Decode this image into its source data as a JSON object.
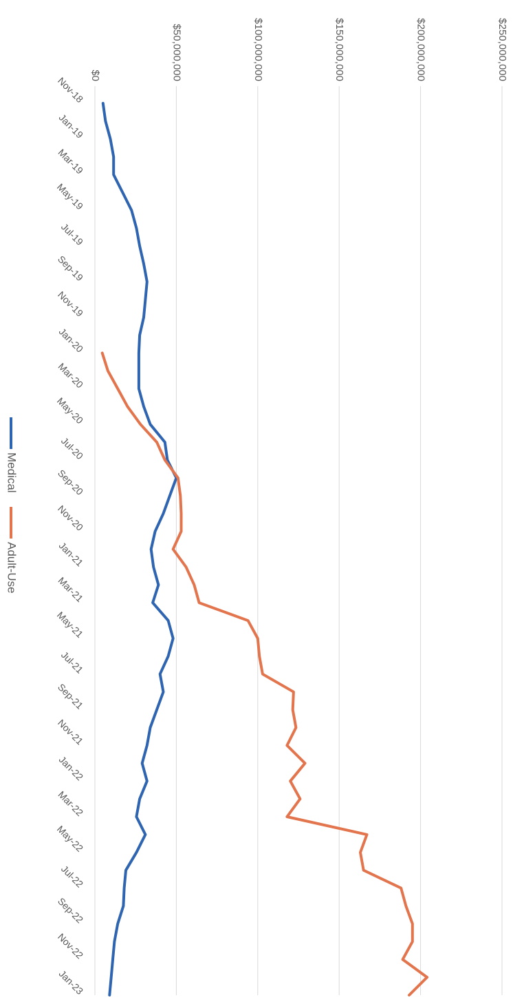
{
  "chart_data": {
    "type": "line",
    "orientation": "rotated-90-clockwise",
    "y_ticks": [
      "$0",
      "$50,000,000",
      "$100,000,000",
      "$150,000,000",
      "$200,000,000",
      "$250,000,000"
    ],
    "ylim": [
      0,
      250000000
    ],
    "grid": true,
    "legend_position": "bottom",
    "x_tick_labels": [
      "Nov-18",
      "Jan-19",
      "Mar-19",
      "May-19",
      "Jul-19",
      "Sep-19",
      "Nov-19",
      "Jan-20",
      "Mar-20",
      "May-20",
      "Jul-20",
      "Sep-20",
      "Nov-20",
      "Jan-21",
      "Mar-21",
      "May-21",
      "Jul-21",
      "Sep-21",
      "Nov-21",
      "Jan-22",
      "Mar-22",
      "May-22",
      "Jul-22",
      "Sep-22",
      "Nov-22",
      "Jan-23"
    ],
    "x": [
      "Nov-18",
      "Dec-18",
      "Jan-19",
      "Feb-19",
      "Mar-19",
      "Apr-19",
      "May-19",
      "Jun-19",
      "Jul-19",
      "Aug-19",
      "Sep-19",
      "Oct-19",
      "Nov-19",
      "Dec-19",
      "Jan-20",
      "Feb-20",
      "Mar-20",
      "Apr-20",
      "May-20",
      "Jun-20",
      "Jul-20",
      "Aug-20",
      "Sep-20",
      "Oct-20",
      "Nov-20",
      "Dec-20",
      "Jan-21",
      "Feb-21",
      "Mar-21",
      "Apr-21",
      "May-21",
      "Jun-21",
      "Jul-21",
      "Aug-21",
      "Sep-21",
      "Oct-21",
      "Nov-21",
      "Dec-21",
      "Jan-22",
      "Feb-22",
      "Mar-22",
      "Apr-22",
      "May-22",
      "Jun-22",
      "Jul-22",
      "Aug-22",
      "Sep-22",
      "Oct-22",
      "Nov-22",
      "Dec-22",
      "Jan-23"
    ],
    "series": [
      {
        "name": "Medical",
        "color": "#2e64b0",
        "values": [
          5000000,
          6500000,
          9500000,
          11500000,
          11500000,
          17000000,
          22500000,
          25500000,
          27500000,
          30000000,
          32000000,
          31000000,
          30000000,
          27500000,
          27000000,
          27000000,
          27000000,
          30000000,
          34000000,
          43000000,
          44500000,
          50000000,
          46000000,
          42000000,
          37000000,
          34500000,
          36000000,
          39000000,
          35500000,
          45000000,
          48000000,
          45000000,
          40000000,
          42000000,
          38000000,
          34000000,
          32000000,
          29000000,
          32000000,
          27500000,
          25500000,
          31000000,
          25500000,
          19000000,
          18000000,
          17500000,
          14000000,
          12000000,
          11000000,
          10000000,
          9000000
        ]
      },
      {
        "name": "Adult-Use",
        "color": "#e2754d",
        "values": [
          null,
          null,
          null,
          null,
          null,
          null,
          null,
          null,
          null,
          null,
          null,
          null,
          null,
          null,
          4500000,
          8000000,
          14000000,
          20000000,
          28000000,
          38000000,
          43000000,
          51000000,
          52500000,
          53000000,
          53000000,
          48000000,
          56000000,
          61000000,
          64000000,
          94000000,
          100000000,
          101000000,
          103000000,
          122000000,
          121500000,
          123500000,
          118000000,
          129000000,
          120000000,
          126000000,
          118000000,
          167000000,
          163000000,
          165000000,
          188000000,
          191000000,
          195000000,
          195000000,
          189000000,
          204000000,
          193000000
        ]
      }
    ]
  }
}
